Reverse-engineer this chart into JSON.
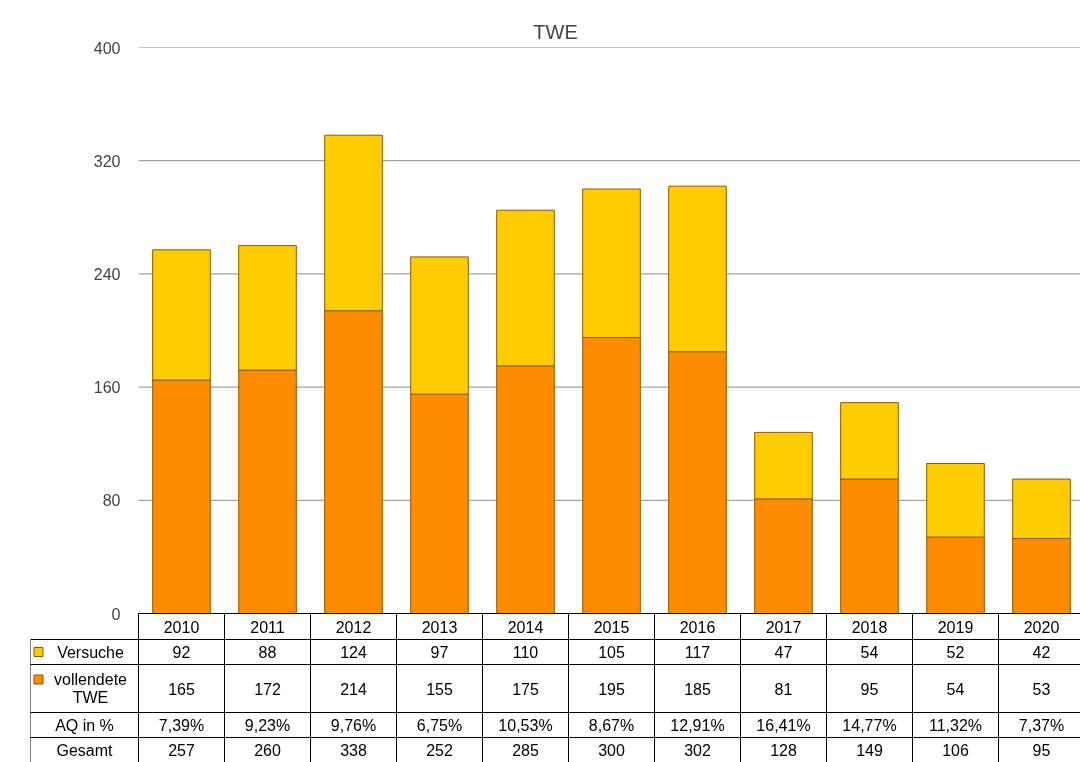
{
  "chart_data": {
    "type": "bar",
    "title": "TWE",
    "stacked": true,
    "categories": [
      "2010",
      "2011",
      "2012",
      "2013",
      "2014",
      "2015",
      "2016",
      "2017",
      "2018",
      "2019",
      "2020"
    ],
    "series": [
      {
        "name": "vollendete TWE",
        "color": "#ff8c00",
        "values": [
          165,
          172,
          214,
          155,
          175,
          195,
          185,
          81,
          95,
          54,
          53
        ]
      },
      {
        "name": "Versuche",
        "color": "#ffcc00",
        "values": [
          92,
          88,
          124,
          97,
          110,
          105,
          117,
          47,
          54,
          52,
          42
        ]
      }
    ],
    "ylim": [
      0,
      400
    ],
    "yticks": [
      0,
      80,
      160,
      240,
      320,
      400
    ],
    "grid": "y",
    "legend": "bottom",
    "data_labels": true,
    "annotations": [
      "AQ in %",
      "7,39%",
      "9,23%",
      "9,76%",
      "6,75%",
      "10,53%",
      "8,67%",
      "12,91%",
      "16,41%",
      "14,77%",
      "11,32%",
      "7,37%",
      "Gesamt",
      "257",
      "260",
      "338",
      "252",
      "285",
      "300",
      "302",
      "128",
      "149",
      "106",
      "95"
    ]
  }
}
